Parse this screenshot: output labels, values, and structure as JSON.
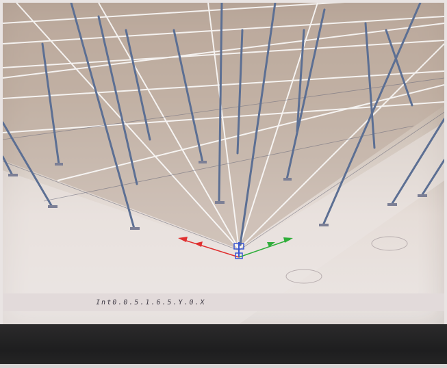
{
  "viewport": {
    "status_text": "Int0.0.5.1.6.5.Y.0.X"
  },
  "colors": {
    "grid_line": "#ffffff",
    "column": "#5c6f93",
    "axis_x": "#e03030",
    "axis_y": "#2fae3a",
    "axis_z": "#3a57d1"
  }
}
